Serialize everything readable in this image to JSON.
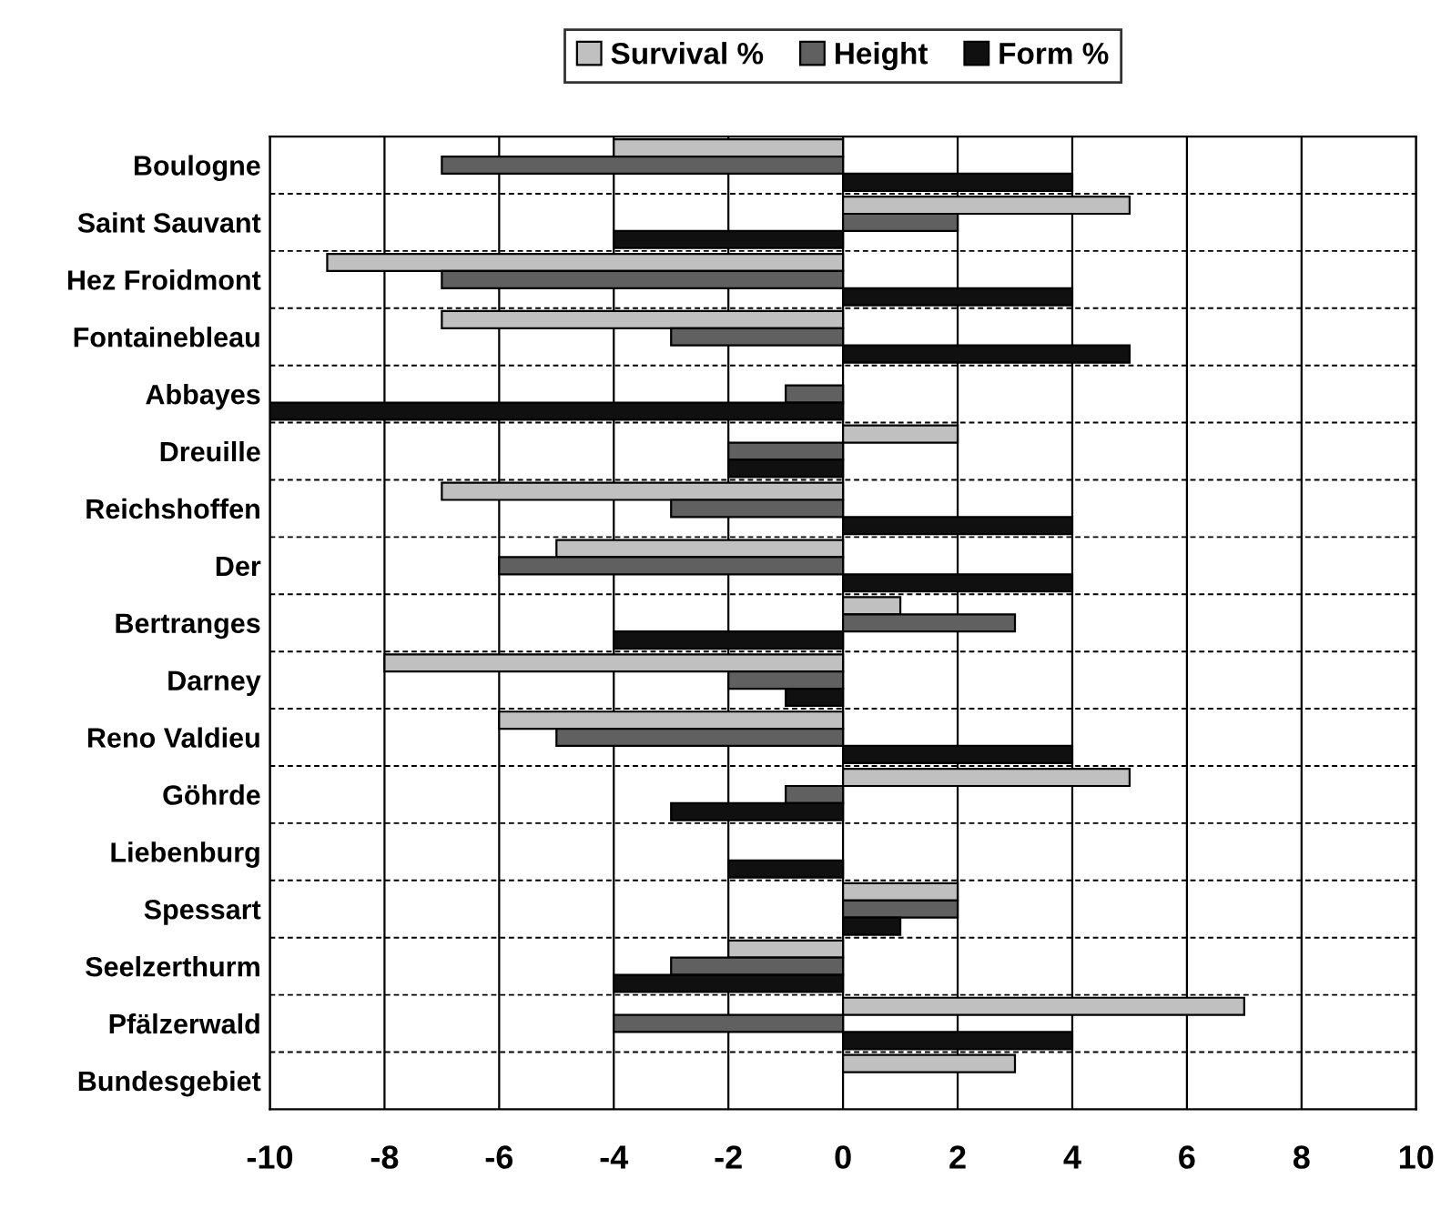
{
  "chart_data": {
    "type": "bar",
    "orientation": "horizontal",
    "categories": [
      "Boulogne",
      "Saint Sauvant",
      "Hez Froidmont",
      "Fontainebleau",
      "Abbayes",
      "Dreuille",
      "Reichshoffen",
      "Der",
      "Bertranges",
      "Darney",
      "Reno Valdieu",
      "Göhrde",
      "Liebenburg",
      "Spessart",
      "Seelzerthurm",
      "Pfälzerwald",
      "Bundesgebiet"
    ],
    "series": [
      {
        "name": "Survival %",
        "color": "#c0c0c0",
        "values": [
          -4,
          5,
          -9,
          -7,
          null,
          2,
          -7,
          -5,
          1,
          -8,
          -6,
          5,
          null,
          2,
          -2,
          7,
          3
        ]
      },
      {
        "name": "Height",
        "color": "#606060",
        "values": [
          -7,
          2,
          -7,
          -3,
          -1,
          -2,
          -3,
          -6,
          3,
          -2,
          -5,
          -1,
          null,
          2,
          -3,
          -4,
          null
        ]
      },
      {
        "name": "Form %",
        "color": "#101010",
        "values": [
          4,
          -4,
          4,
          5,
          -10,
          -2,
          4,
          4,
          -4,
          -1,
          4,
          -3,
          -2,
          1,
          -4,
          4,
          null
        ]
      }
    ],
    "xlim": [
      -10,
      10
    ],
    "xticks": [
      -10,
      -8,
      -6,
      -4,
      -2,
      0,
      2,
      4,
      6,
      8,
      10
    ],
    "grid": true,
    "legend": "top"
  }
}
